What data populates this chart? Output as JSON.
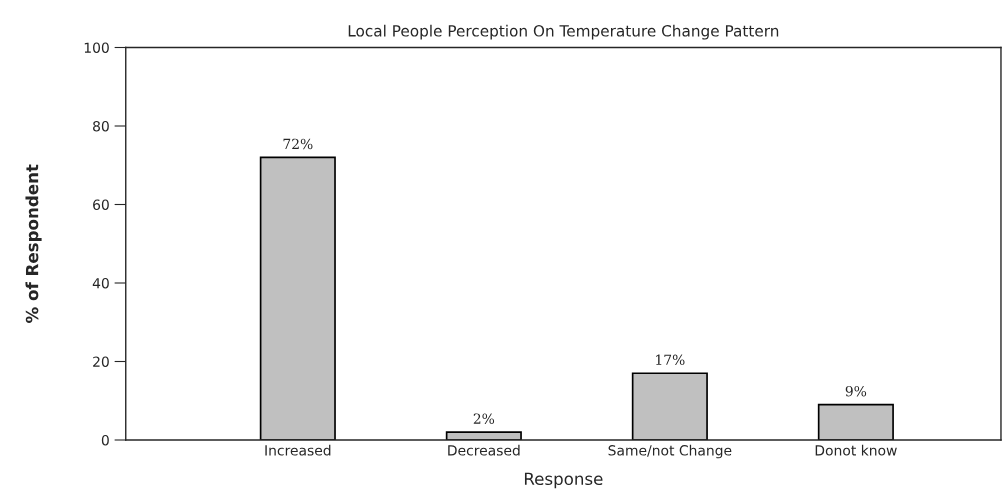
{
  "chart_data": {
    "type": "bar",
    "title": "Local People Perception On Temperature Change Pattern",
    "xlabel": "Response",
    "ylabel": "% of Respondent",
    "categories": [
      "Increased",
      "Decreased",
      "Same/not Change",
      "Donot know"
    ],
    "values": [
      72,
      2,
      17,
      9
    ],
    "color": "#c0c0c0",
    "value_labels": [
      "72%",
      "2%",
      "17%",
      "9%"
    ],
    "ylim": [
      0,
      100
    ],
    "yticks": [
      0,
      20,
      40,
      60,
      80,
      100
    ],
    "grid": false,
    "legend": false
  }
}
